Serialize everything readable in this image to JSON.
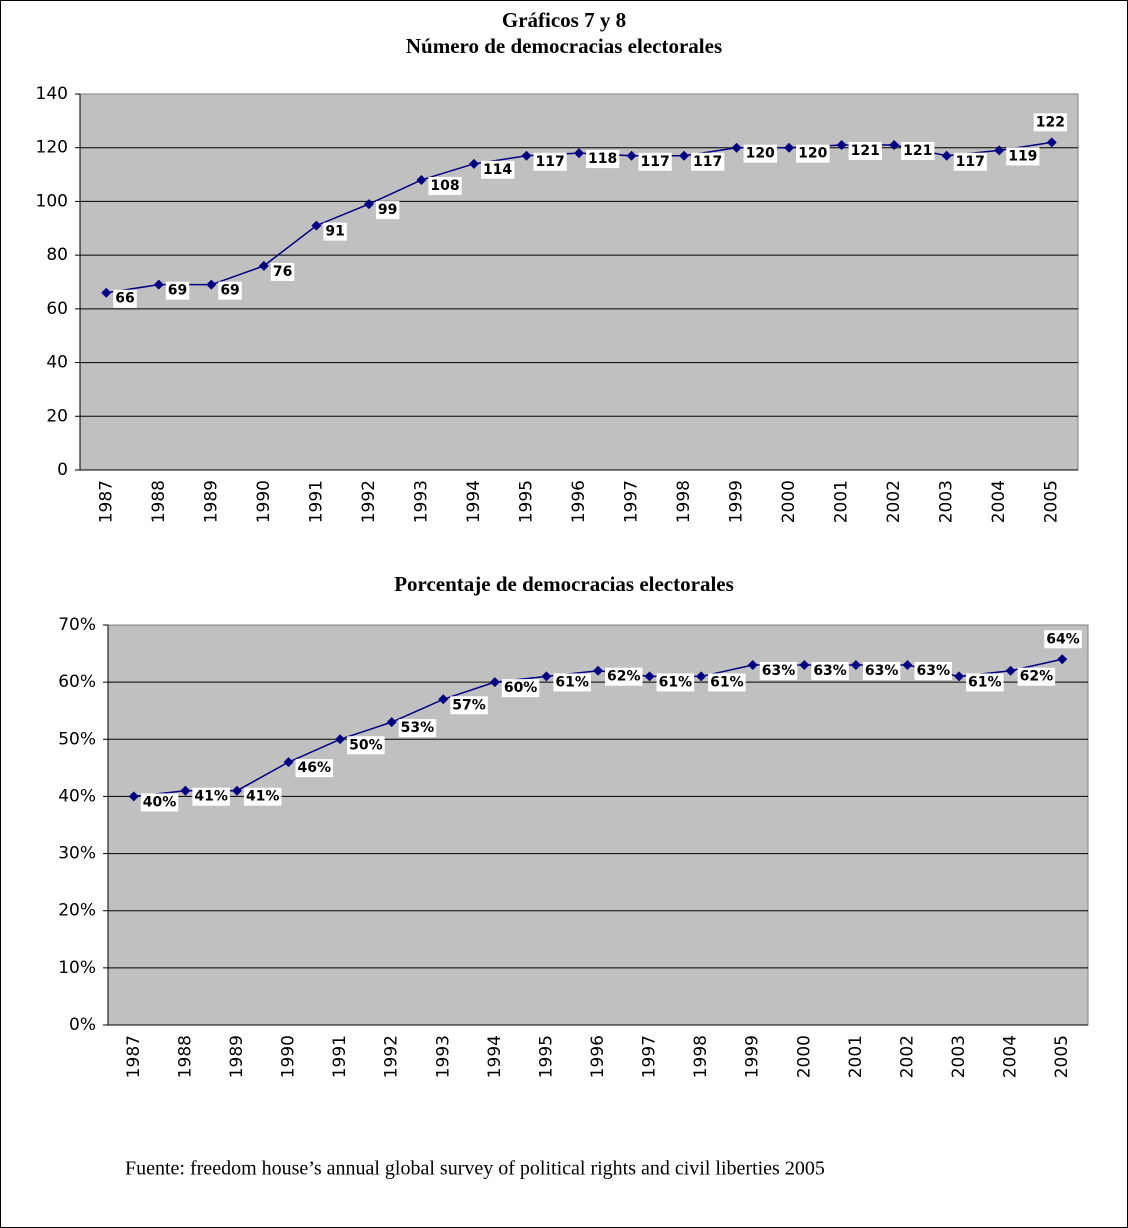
{
  "header": {
    "title": "Gráficos 7 y 8"
  },
  "chart_data": [
    {
      "type": "line",
      "title": "Número de democracias electorales",
      "categories": [
        "1987",
        "1988",
        "1989",
        "1990",
        "1991",
        "1992",
        "1993",
        "1994",
        "1995",
        "1996",
        "1997",
        "1998",
        "1999",
        "2000",
        "2001",
        "2002",
        "2003",
        "2004",
        "2005"
      ],
      "values": [
        66,
        69,
        69,
        76,
        91,
        99,
        108,
        114,
        117,
        118,
        117,
        117,
        120,
        120,
        121,
        121,
        117,
        119,
        122
      ],
      "color": "#000080",
      "background": "#c0c0c0",
      "ylim": [
        0,
        140
      ],
      "yticks": [
        0,
        20,
        40,
        60,
        80,
        100,
        120,
        140
      ],
      "grid": true
    },
    {
      "type": "line",
      "title": "Porcentaje de democracias electorales",
      "categories": [
        "1987",
        "1988",
        "1989",
        "1990",
        "1991",
        "1992",
        "1993",
        "1994",
        "1995",
        "1996",
        "1997",
        "1998",
        "1999",
        "2000",
        "2001",
        "2002",
        "2003",
        "2004",
        "2005"
      ],
      "values": [
        40,
        41,
        41,
        46,
        50,
        53,
        57,
        60,
        61,
        62,
        61,
        61,
        63,
        63,
        63,
        63,
        61,
        62,
        64
      ],
      "value_labels": [
        "40%",
        "41%",
        "41%",
        "46%",
        "50%",
        "53%",
        "57%",
        "60%",
        "61%",
        "62%",
        "61%",
        "61%",
        "63%",
        "63%",
        "63%",
        "63%",
        "61%",
        "62%",
        "64%"
      ],
      "color": "#000080",
      "background": "#c0c0c0",
      "ylim": [
        0,
        70
      ],
      "yticks": [
        {
          "value": 0,
          "label": "0%"
        },
        {
          "value": 10,
          "label": "10%"
        },
        {
          "value": 20,
          "label": "20%"
        },
        {
          "value": 30,
          "label": "30%"
        },
        {
          "value": 40,
          "label": "40%"
        },
        {
          "value": 50,
          "label": "50%"
        },
        {
          "value": 60,
          "label": "60%"
        },
        {
          "value": 70,
          "label": "70%"
        }
      ],
      "grid": true
    }
  ],
  "source": "Fuente: freedom house’s annual global survey of political rights and civil liberties 2005"
}
